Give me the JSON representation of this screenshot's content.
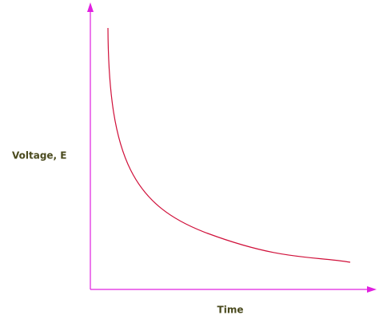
{
  "axes": {
    "y_label": "Voltage, E",
    "x_label": "Time"
  }
}
